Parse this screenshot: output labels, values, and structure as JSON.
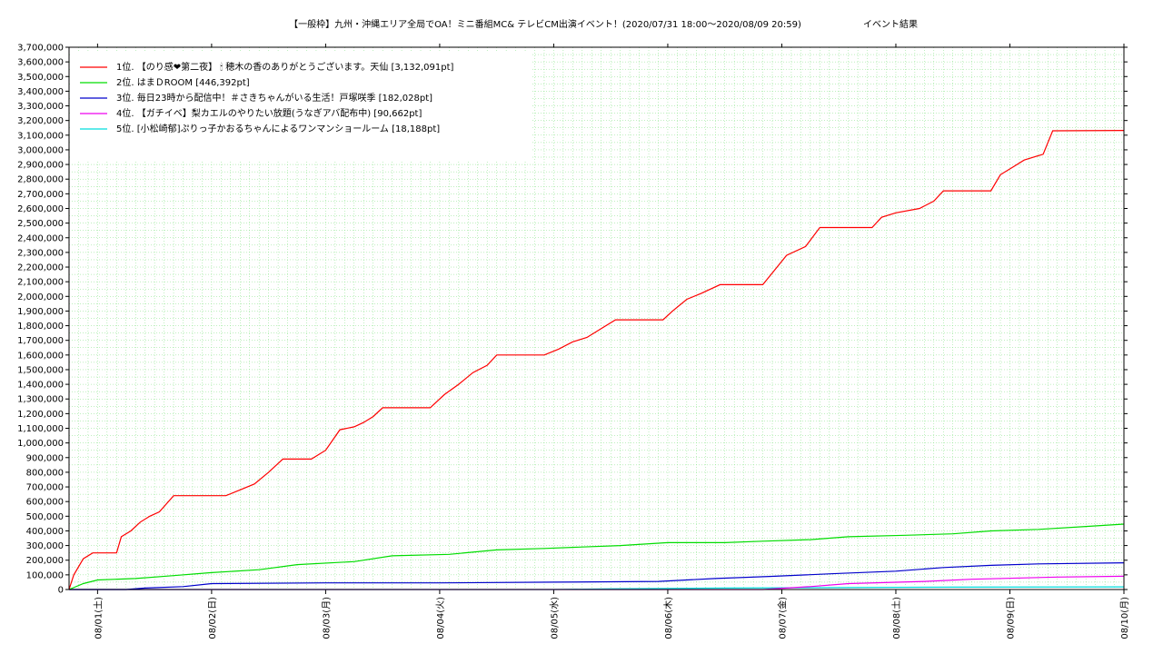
{
  "chart_data": {
    "type": "line",
    "title": "【一般枠】九州・沖縄エリア全局でOA！ミニ番組MC& テレビCM出演イベント！(2020/07/31 18:00〜2020/08/09 20:59)",
    "subtitle": "イベント結果",
    "xlabel": "",
    "ylabel": "",
    "ylim": [
      0,
      3700000
    ],
    "y_ticks": [
      "0",
      "100,000",
      "200,000",
      "300,000",
      "400,000",
      "500,000",
      "600,000",
      "700,000",
      "800,000",
      "900,000",
      "1,000,000",
      "1,100,000",
      "1,200,000",
      "1,300,000",
      "1,400,000",
      "1,500,000",
      "1,600,000",
      "1,700,000",
      "1,800,000",
      "1,900,000",
      "2,000,000",
      "2,100,000",
      "2,200,000",
      "2,300,000",
      "2,400,000",
      "2,500,000",
      "2,600,000",
      "2,700,000",
      "2,800,000",
      "2,900,000",
      "3,000,000",
      "3,100,000",
      "3,200,000",
      "3,300,000",
      "3,400,000",
      "3,500,000",
      "3,600,000",
      "3,700,000"
    ],
    "x_range": [
      "2020/07/31 18:00",
      "2020/08/10 00:00"
    ],
    "x_ticks": [
      {
        "date": "2020/08/01",
        "label": "08/01(土)"
      },
      {
        "date": "2020/08/02",
        "label": "08/02(日)"
      },
      {
        "date": "2020/08/03",
        "label": "08/03(月)"
      },
      {
        "date": "2020/08/04",
        "label": "08/04(火)"
      },
      {
        "date": "2020/08/05",
        "label": "08/05(水)"
      },
      {
        "date": "2020/08/06",
        "label": "08/06(木)"
      },
      {
        "date": "2020/08/07",
        "label": "08/07(金)"
      },
      {
        "date": "2020/08/08",
        "label": "08/08(土)"
      },
      {
        "date": "2020/08/09",
        "label": "08/09(日)"
      },
      {
        "date": "2020/08/10",
        "label": "08/10(月)"
      }
    ],
    "grid": true,
    "legend_position": "top-left",
    "series": [
      {
        "name": "1位. 【のり感❤第二夜】 🕯 穂木の香のありがとうございます。天仙 [3,132,091pt]",
        "color": "#ff0000",
        "points": [
          [
            "2020/07/31 18:00",
            0
          ],
          [
            "2020/07/31 19:00",
            100000
          ],
          [
            "2020/07/31 21:00",
            210000
          ],
          [
            "2020/07/31 23:00",
            250000
          ],
          [
            "2020/08/01 04:00",
            250000
          ],
          [
            "2020/08/01 05:00",
            360000
          ],
          [
            "2020/08/01 07:00",
            400000
          ],
          [
            "2020/08/01 09:00",
            460000
          ],
          [
            "2020/08/01 11:00",
            500000
          ],
          [
            "2020/08/01 13:00",
            530000
          ],
          [
            "2020/08/01 16:00",
            640000
          ],
          [
            "2020/08/02 03:00",
            640000
          ],
          [
            "2020/08/02 06:00",
            680000
          ],
          [
            "2020/08/02 09:00",
            720000
          ],
          [
            "2020/08/02 12:00",
            800000
          ],
          [
            "2020/08/02 15:00",
            890000
          ],
          [
            "2020/08/02 21:00",
            890000
          ],
          [
            "2020/08/03 00:00",
            950000
          ],
          [
            "2020/08/03 03:00",
            1090000
          ],
          [
            "2020/08/03 06:00",
            1110000
          ],
          [
            "2020/08/03 08:00",
            1140000
          ],
          [
            "2020/08/03 10:00",
            1180000
          ],
          [
            "2020/08/03 12:00",
            1240000
          ],
          [
            "2020/08/03 22:00",
            1240000
          ],
          [
            "2020/08/04 01:00",
            1330000
          ],
          [
            "2020/08/04 04:00",
            1400000
          ],
          [
            "2020/08/04 07:00",
            1480000
          ],
          [
            "2020/08/04 10:00",
            1530000
          ],
          [
            "2020/08/04 12:00",
            1600000
          ],
          [
            "2020/08/04 22:00",
            1600000
          ],
          [
            "2020/08/05 01:00",
            1640000
          ],
          [
            "2020/08/05 04:00",
            1690000
          ],
          [
            "2020/08/05 07:00",
            1720000
          ],
          [
            "2020/08/05 10:00",
            1780000
          ],
          [
            "2020/08/05 13:00",
            1840000
          ],
          [
            "2020/08/05 23:00",
            1840000
          ],
          [
            "2020/08/06 01:00",
            1900000
          ],
          [
            "2020/08/06 04:00",
            1980000
          ],
          [
            "2020/08/06 07:00",
            2020000
          ],
          [
            "2020/08/06 11:00",
            2080000
          ],
          [
            "2020/08/06 20:00",
            2080000
          ],
          [
            "2020/08/06 22:00",
            2160000
          ],
          [
            "2020/08/07 01:00",
            2280000
          ],
          [
            "2020/08/07 05:00",
            2340000
          ],
          [
            "2020/08/07 08:00",
            2470000
          ],
          [
            "2020/08/07 19:00",
            2470000
          ],
          [
            "2020/08/07 21:00",
            2540000
          ],
          [
            "2020/08/08 00:00",
            2570000
          ],
          [
            "2020/08/08 05:00",
            2600000
          ],
          [
            "2020/08/08 08:00",
            2650000
          ],
          [
            "2020/08/08 10:00",
            2720000
          ],
          [
            "2020/08/08 20:00",
            2720000
          ],
          [
            "2020/08/08 22:00",
            2830000
          ],
          [
            "2020/08/09 01:00",
            2890000
          ],
          [
            "2020/08/09 03:00",
            2930000
          ],
          [
            "2020/08/09 07:00",
            2970000
          ],
          [
            "2020/08/09 09:00",
            3130000
          ],
          [
            "2020/08/10 00:00",
            3132091
          ]
        ]
      },
      {
        "name": "2位. はまＤROOM [446,392pt]",
        "color": "#00dd00",
        "points": [
          [
            "2020/07/31 18:00",
            0
          ],
          [
            "2020/07/31 21:00",
            40000
          ],
          [
            "2020/08/01 00:00",
            65000
          ],
          [
            "2020/08/01 08:00",
            75000
          ],
          [
            "2020/08/01 16:00",
            95000
          ],
          [
            "2020/08/02 00:00",
            115000
          ],
          [
            "2020/08/02 10:00",
            135000
          ],
          [
            "2020/08/02 18:00",
            170000
          ],
          [
            "2020/08/03 06:00",
            190000
          ],
          [
            "2020/08/03 14:00",
            230000
          ],
          [
            "2020/08/04 02:00",
            240000
          ],
          [
            "2020/08/04 12:00",
            270000
          ],
          [
            "2020/08/04 22:00",
            280000
          ],
          [
            "2020/08/05 06:00",
            290000
          ],
          [
            "2020/08/05 14:00",
            300000
          ],
          [
            "2020/08/06 00:00",
            320000
          ],
          [
            "2020/08/06 12:00",
            320000
          ],
          [
            "2020/08/06 20:00",
            330000
          ],
          [
            "2020/08/07 06:00",
            340000
          ],
          [
            "2020/08/07 14:00",
            360000
          ],
          [
            "2020/08/08 02:00",
            370000
          ],
          [
            "2020/08/08 12:00",
            380000
          ],
          [
            "2020/08/08 20:00",
            400000
          ],
          [
            "2020/08/09 06:00",
            410000
          ],
          [
            "2020/08/09 16:00",
            430000
          ],
          [
            "2020/08/10 00:00",
            446392
          ]
        ]
      },
      {
        "name": "3位. 毎日23時から配信中！＃さきちゃんがいる生活！戸塚咲季 [182,028pt]",
        "color": "#0000cc",
        "points": [
          [
            "2020/07/31 18:00",
            0
          ],
          [
            "2020/08/01 06:00",
            0
          ],
          [
            "2020/08/01 10:00",
            10000
          ],
          [
            "2020/08/01 18:00",
            20000
          ],
          [
            "2020/08/02 00:00",
            40000
          ],
          [
            "2020/08/03 00:00",
            45000
          ],
          [
            "2020/08/04 00:00",
            45000
          ],
          [
            "2020/08/05 00:00",
            50000
          ],
          [
            "2020/08/05 22:00",
            55000
          ],
          [
            "2020/08/06 10:00",
            75000
          ],
          [
            "2020/08/06 22:00",
            90000
          ],
          [
            "2020/08/07 12:00",
            110000
          ],
          [
            "2020/08/08 00:00",
            125000
          ],
          [
            "2020/08/08 10:00",
            150000
          ],
          [
            "2020/08/08 20:00",
            165000
          ],
          [
            "2020/08/09 06:00",
            175000
          ],
          [
            "2020/08/10 00:00",
            182028
          ]
        ]
      },
      {
        "name": "4位. 【ガチイベ】梨カエルのやりたい放題(うなぎアバ配布中) [90,662pt]",
        "color": "#ee00ee",
        "points": [
          [
            "2020/07/31 18:00",
            0
          ],
          [
            "2020/08/06 20:00",
            0
          ],
          [
            "2020/08/07 06:00",
            20000
          ],
          [
            "2020/08/07 14:00",
            40000
          ],
          [
            "2020/08/08 06:00",
            55000
          ],
          [
            "2020/08/08 16:00",
            70000
          ],
          [
            "2020/08/09 10:00",
            85000
          ],
          [
            "2020/08/10 00:00",
            90662
          ]
        ]
      },
      {
        "name": "5位. [小松崎郁]ぷりっ子かおるちゃんによるワンマンショールーム [18,188pt]",
        "color": "#00dddd",
        "points": [
          [
            "2020/07/31 18:00",
            0
          ],
          [
            "2020/08/05 00:00",
            0
          ],
          [
            "2020/08/05 12:00",
            5000
          ],
          [
            "2020/08/06 12:00",
            10000
          ],
          [
            "2020/08/07 12:00",
            13000
          ],
          [
            "2020/08/08 12:00",
            16000
          ],
          [
            "2020/08/10 00:00",
            18188
          ]
        ]
      }
    ]
  }
}
